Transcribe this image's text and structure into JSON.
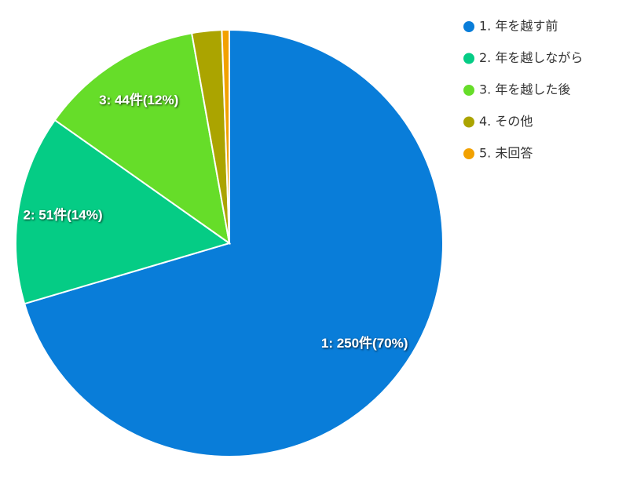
{
  "chart_data": {
    "type": "pie",
    "categories": [
      "1. 年を越す前",
      "2. 年を越しながら",
      "3. 年を越した後",
      "4. その他",
      "5. 未回答"
    ],
    "values": [
      250,
      51,
      44,
      8,
      2
    ],
    "value_labels": [
      "1: 250件(70%)",
      "2: 51件(14%)",
      "3: 44件(12%)",
      null,
      null
    ],
    "colors": [
      "#097dd9",
      "#05cc85",
      "#66dd29",
      "#aba400",
      "#f2a100"
    ],
    "legend": "top-right"
  }
}
